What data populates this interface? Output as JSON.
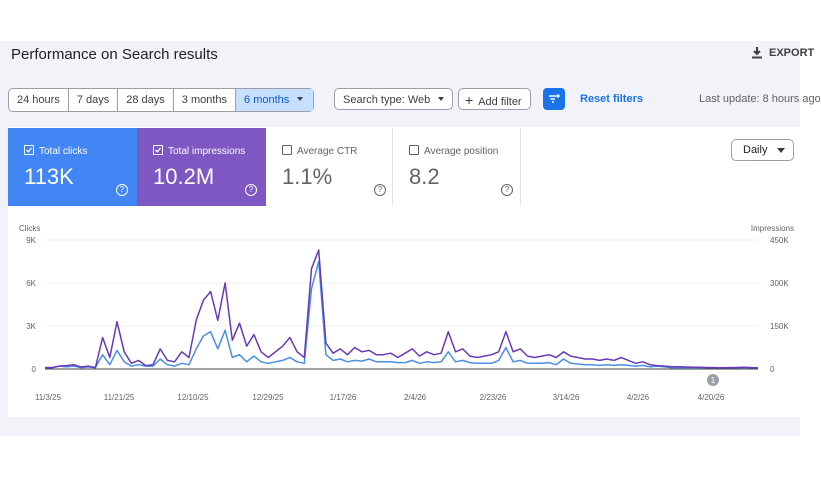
{
  "header": {
    "title": "Performance on Search results",
    "export_label": "EXPORT"
  },
  "filters": {
    "date_ranges": [
      "24 hours",
      "7 days",
      "28 days",
      "3 months",
      "6 months"
    ],
    "active_range": "6 months",
    "search_type": "Search type: Web",
    "add_filter": "Add filter",
    "reset": "Reset filters",
    "last_update": "Last update: 8 hours ago"
  },
  "metrics": [
    {
      "label": "Total clicks",
      "value": "113K",
      "checked": true,
      "color": "#4285f4"
    },
    {
      "label": "Total impressions",
      "value": "10.2M",
      "checked": true,
      "color": "#7e57c2"
    },
    {
      "label": "Average CTR",
      "value": "1.1%",
      "checked": false
    },
    {
      "label": "Average position",
      "value": "8.2",
      "checked": false
    }
  ],
  "granularity": "Daily",
  "chart_data": {
    "type": "line",
    "x_ticks": [
      "11/3/25",
      "11/21/25",
      "12/10/25",
      "12/29/25",
      "1/17/26",
      "2/4/26",
      "2/23/26",
      "3/14/26",
      "4/2/26",
      "4/20/26"
    ],
    "left_axis": {
      "label": "Clicks",
      "ticks": [
        "0",
        "3K",
        "6K",
        "9K"
      ],
      "ylim": [
        0,
        9000
      ]
    },
    "right_axis": {
      "label": "Impressions",
      "ticks": [
        "0",
        "150K",
        "300K",
        "450K"
      ],
      "ylim": [
        0,
        450000
      ]
    },
    "annotation": "1",
    "series": [
      {
        "name": "Clicks",
        "axis": "left",
        "color": "#4a90e2",
        "values": [
          100,
          100,
          200,
          150,
          200,
          100,
          150,
          100,
          1000,
          300,
          1300,
          500,
          200,
          300,
          200,
          200,
          700,
          300,
          200,
          400,
          300,
          1400,
          2300,
          2600,
          1400,
          2700,
          800,
          1000,
          500,
          900,
          500,
          400,
          500,
          600,
          800,
          500,
          400,
          5600,
          7500,
          1000,
          600,
          700,
          500,
          600,
          550,
          700,
          500,
          500,
          500,
          450,
          450,
          600,
          400,
          500,
          450,
          500,
          1200,
          500,
          600,
          450,
          400,
          400,
          400,
          600,
          1500,
          500,
          600,
          400,
          400,
          400,
          450,
          300,
          700,
          400,
          350,
          300,
          300,
          250,
          300,
          250,
          300,
          250,
          200,
          250,
          150,
          200,
          150,
          100,
          100,
          100,
          100,
          100,
          100,
          100,
          80,
          100,
          100,
          100,
          100,
          80
        ]
      },
      {
        "name": "Impressions",
        "axis": "right",
        "values": [
          5000,
          5000,
          10000,
          12000,
          15000,
          7000,
          10000,
          5000,
          110000,
          40000,
          165000,
          60000,
          20000,
          30000,
          12000,
          15000,
          70000,
          30000,
          25000,
          60000,
          40000,
          170000,
          240000,
          270000,
          170000,
          300000,
          100000,
          160000,
          80000,
          120000,
          60000,
          40000,
          60000,
          80000,
          110000,
          60000,
          40000,
          350000,
          415000,
          90000,
          55000,
          70000,
          50000,
          75000,
          60000,
          65000,
          50000,
          50000,
          55000,
          40000,
          55000,
          70000,
          45000,
          60000,
          50000,
          55000,
          130000,
          60000,
          70000,
          45000,
          40000,
          45000,
          50000,
          60000,
          130000,
          60000,
          70000,
          45000,
          40000,
          45000,
          50000,
          40000,
          60000,
          45000,
          40000,
          35000,
          35000,
          30000,
          35000,
          30000,
          40000,
          30000,
          20000,
          25000,
          15000,
          12000,
          10000,
          8000,
          8000,
          7000,
          6000,
          6000,
          5000,
          5000,
          4000,
          5000,
          5000,
          6000,
          5000,
          4000
        ],
        "color": "#673ab7"
      }
    ]
  }
}
